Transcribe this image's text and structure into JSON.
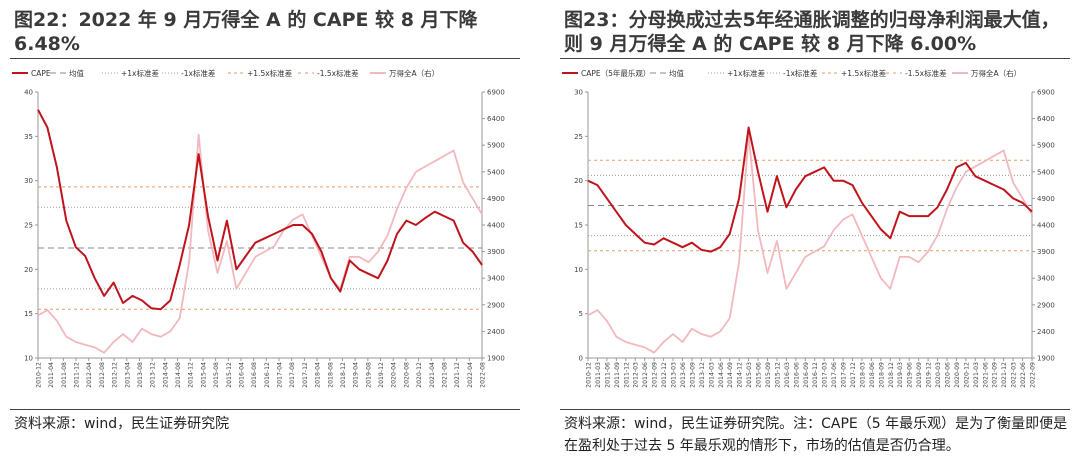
{
  "colors": {
    "cape": "#c0141c",
    "index": "#f2b8bd",
    "mean": "#888888",
    "sd1": "#9a9a9a",
    "sd15": "#e99a6a",
    "title": "#3a3a3a"
  },
  "panels": [
    {
      "title": "图22：2022 年 9 月万得全 A 的 CAPE 较 8 月下降 6.48%",
      "source": "资料来源：wind，民生证券研究院",
      "legend": [
        "CAPE",
        "均值",
        "+1x标准差",
        "-1x标准差",
        "+1.5x标准差",
        "-1.5x标准差",
        "万得全A（右）"
      ],
      "y_left": {
        "min": 10,
        "max": 40,
        "ticks": [
          "10",
          "15",
          "20",
          "25",
          "30",
          "35",
          "40"
        ]
      },
      "y_right": {
        "min": 1900,
        "max": 6900,
        "ticks": [
          "1900",
          "2400",
          "2900",
          "3400",
          "3900",
          "4400",
          "4900",
          "5400",
          "5900",
          "6400",
          "6900"
        ]
      },
      "x_ticks": [
        "2010-12",
        "2011-04",
        "2011-08",
        "2011-12",
        "2012-04",
        "2012-08",
        "2012-12",
        "2013-04",
        "2013-08",
        "2013-12",
        "2014-04",
        "2014-08",
        "2014-12",
        "2015-04",
        "2015-08",
        "2015-12",
        "2016-04",
        "2016-08",
        "2016-12",
        "2017-04",
        "2017-08",
        "2017-12",
        "2018-04",
        "2018-08",
        "2018-12",
        "2019-04",
        "2019-08",
        "2019-12",
        "2020-04",
        "2020-08",
        "2020-12",
        "2021-04",
        "2021-08",
        "2021-12",
        "2022-04",
        "2022-08"
      ]
    },
    {
      "title": "图23：分母换成过去5年经通胀调整的归母净利润最大值，则 9 月万得全 A 的 CAPE 较 8 月下降 6.00%",
      "source": "资料来源：wind，民生证券研究院。注：CAPE（5 年最乐观）是为了衡量即便是在盈利处于过去 5 年最乐观的情形下，市场的估值是否仍合理。",
      "legend": [
        "CAPE（5年最乐观）",
        "均值",
        "+1x标准差",
        "-1x标准差",
        "+1.5x标准差",
        "-1.5x标准差",
        "万得全A（右）"
      ],
      "y_left": {
        "min": 0,
        "max": 30,
        "ticks": [
          "0",
          "5",
          "10",
          "15",
          "20",
          "25",
          "30"
        ]
      },
      "y_right": {
        "min": 1900,
        "max": 6900,
        "ticks": [
          "1900",
          "2400",
          "2900",
          "3400",
          "3900",
          "4400",
          "4900",
          "5400",
          "5900",
          "6400",
          "6900"
        ]
      },
      "x_ticks": [
        "2010-12",
        "2011-03",
        "2011-06",
        "2011-09",
        "2011-12",
        "2012-03",
        "2012-06",
        "2012-09",
        "2012-12",
        "2013-03",
        "2013-06",
        "2013-09",
        "2013-12",
        "2014-03",
        "2014-06",
        "2014-09",
        "2014-12",
        "2015-03",
        "2015-06",
        "2015-09",
        "2015-12",
        "2016-03",
        "2016-06",
        "2016-09",
        "2016-12",
        "2017-03",
        "2017-06",
        "2017-09",
        "2017-12",
        "2018-03",
        "2018-06",
        "2018-09",
        "2018-12",
        "2019-03",
        "2019-06",
        "2019-09",
        "2019-12",
        "2020-03",
        "2020-06",
        "2020-09",
        "2020-12",
        "2021-03",
        "2021-06",
        "2021-09",
        "2021-12",
        "2022-03",
        "2022-06",
        "2022-09"
      ]
    }
  ],
  "chart_data": [
    {
      "type": "line",
      "title": "图22：2022 年 9 月万得全 A 的 CAPE 较 8 月下降 6.48%",
      "x": [
        "2010-12",
        "2011-03",
        "2011-06",
        "2011-09",
        "2011-12",
        "2012-03",
        "2012-06",
        "2012-09",
        "2012-12",
        "2013-03",
        "2013-06",
        "2013-09",
        "2013-12",
        "2014-03",
        "2014-06",
        "2014-09",
        "2014-12",
        "2015-03",
        "2015-06",
        "2015-09",
        "2015-12",
        "2016-03",
        "2016-06",
        "2016-09",
        "2016-12",
        "2017-03",
        "2017-06",
        "2017-09",
        "2017-12",
        "2018-03",
        "2018-06",
        "2018-09",
        "2018-12",
        "2019-03",
        "2019-06",
        "2019-09",
        "2019-12",
        "2020-03",
        "2020-06",
        "2020-09",
        "2020-12",
        "2021-03",
        "2021-06",
        "2021-09",
        "2021-12",
        "2022-03",
        "2022-06",
        "2022-09"
      ],
      "ylim": [
        10,
        40
      ],
      "y2lim": [
        1900,
        6900
      ],
      "reference_lines": {
        "mean": 22.4,
        "plus_1sd": 27.0,
        "minus_1sd": 17.8,
        "plus_1_5sd": 29.3,
        "minus_1_5sd": 15.5
      },
      "series": [
        {
          "name": "CAPE",
          "axis": "left",
          "values": [
            38.0,
            36.0,
            31.5,
            25.5,
            22.5,
            21.5,
            19.0,
            17.0,
            18.5,
            16.2,
            17.0,
            16.5,
            15.6,
            15.5,
            16.5,
            20.5,
            25.0,
            33.0,
            26.0,
            21.0,
            25.5,
            20.0,
            21.5,
            23.0,
            23.5,
            24.0,
            24.5,
            25.0,
            25.0,
            24.0,
            22.0,
            19.0,
            17.5,
            21.0,
            20.0,
            19.5,
            19.0,
            21.0,
            24.0,
            25.5,
            25.0,
            25.8,
            26.5,
            26.0,
            25.5,
            23.0,
            22.0,
            20.5
          ]
        },
        {
          "name": "万得全A（右）",
          "axis": "right",
          "values": [
            2700,
            2800,
            2600,
            2300,
            2200,
            2150,
            2100,
            2000,
            2200,
            2350,
            2200,
            2450,
            2350,
            2300,
            2400,
            2650,
            3700,
            6100,
            4300,
            3500,
            4100,
            3200,
            3500,
            3800,
            3900,
            4000,
            4300,
            4500,
            4600,
            4200,
            3800,
            3400,
            3200,
            3800,
            3800,
            3700,
            3900,
            4200,
            4700,
            5100,
            5400,
            5500,
            5600,
            5700,
            5800,
            5200,
            4900,
            4600
          ]
        }
      ]
    },
    {
      "type": "line",
      "title": "图23：分母换成过去5年经通胀调整的归母净利润最大值，则 9 月万得全 A 的 CAPE 较 8 月下降 6.00%",
      "x": [
        "2010-12",
        "2011-03",
        "2011-06",
        "2011-09",
        "2011-12",
        "2012-03",
        "2012-06",
        "2012-09",
        "2012-12",
        "2013-03",
        "2013-06",
        "2013-09",
        "2013-12",
        "2014-03",
        "2014-06",
        "2014-09",
        "2014-12",
        "2015-03",
        "2015-06",
        "2015-09",
        "2015-12",
        "2016-03",
        "2016-06",
        "2016-09",
        "2016-12",
        "2017-03",
        "2017-06",
        "2017-09",
        "2017-12",
        "2018-03",
        "2018-06",
        "2018-09",
        "2018-12",
        "2019-03",
        "2019-06",
        "2019-09",
        "2019-12",
        "2020-03",
        "2020-06",
        "2020-09",
        "2020-12",
        "2021-03",
        "2021-06",
        "2021-09",
        "2021-12",
        "2022-03",
        "2022-06",
        "2022-09"
      ],
      "ylim": [
        0,
        30
      ],
      "y2lim": [
        1900,
        6900
      ],
      "reference_lines": {
        "mean": 17.2,
        "plus_1sd": 20.6,
        "minus_1sd": 13.8,
        "plus_1_5sd": 22.3,
        "minus_1_5sd": 12.1
      },
      "series": [
        {
          "name": "CAPE（5年最乐观）",
          "axis": "left",
          "values": [
            20.0,
            19.5,
            18.0,
            16.5,
            15.0,
            14.0,
            13.0,
            12.8,
            13.5,
            13.0,
            12.5,
            13.0,
            12.2,
            12.0,
            12.5,
            14.0,
            18.0,
            26.0,
            21.0,
            16.5,
            20.5,
            17.0,
            19.0,
            20.5,
            21.0,
            21.5,
            20.0,
            20.0,
            19.5,
            17.5,
            16.0,
            14.5,
            13.5,
            16.5,
            16.0,
            16.0,
            16.0,
            17.0,
            19.0,
            21.5,
            22.0,
            20.5,
            20.0,
            19.5,
            19.0,
            18.0,
            17.5,
            16.5
          ]
        },
        {
          "name": "万得全A（右）",
          "axis": "right",
          "values": [
            2700,
            2800,
            2600,
            2300,
            2200,
            2150,
            2100,
            2000,
            2200,
            2350,
            2200,
            2450,
            2350,
            2300,
            2400,
            2650,
            3700,
            6100,
            4300,
            3500,
            4100,
            3200,
            3500,
            3800,
            3900,
            4000,
            4300,
            4500,
            4600,
            4200,
            3800,
            3400,
            3200,
            3800,
            3800,
            3700,
            3900,
            4200,
            4700,
            5100,
            5400,
            5500,
            5600,
            5700,
            5800,
            5200,
            4900,
            4600
          ]
        }
      ]
    }
  ]
}
